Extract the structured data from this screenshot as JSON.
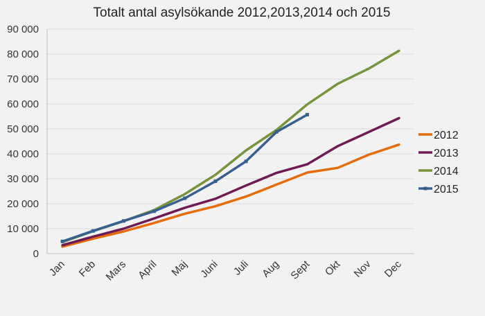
{
  "chart_data": {
    "type": "line",
    "title": "Totalt antal asylsökande 2012,2013,2014 och 2015",
    "xlabel": "",
    "ylabel": "",
    "categories": [
      "Jan",
      "Feb",
      "Mars",
      "April",
      "Maj",
      "Juni",
      "Juli",
      "Aug",
      "Sept",
      "Okt",
      "Nov",
      "Dec"
    ],
    "ylim": [
      0,
      90000
    ],
    "yticks": [
      0,
      10000,
      20000,
      30000,
      40000,
      50000,
      60000,
      70000,
      80000,
      90000
    ],
    "ytick_labels": [
      "0",
      "10 000",
      "20 000",
      "30 000",
      "40 000",
      "50 000",
      "60 000",
      "70 000",
      "80 000",
      "90 000"
    ],
    "grid": true,
    "legend_position": "right",
    "series": [
      {
        "name": "2012",
        "color": "#e46c0a",
        "markers": false,
        "values": [
          2800,
          6000,
          8900,
          12300,
          16000,
          19000,
          22900,
          27700,
          32500,
          34400,
          39600,
          43700
        ]
      },
      {
        "name": "2013",
        "color": "#6f1a55",
        "markers": false,
        "values": [
          3400,
          6800,
          10000,
          14100,
          18400,
          22000,
          27300,
          32400,
          35800,
          43100,
          48700,
          54300
        ]
      },
      {
        "name": "2014",
        "color": "#77933c",
        "markers": false,
        "values": [
          4600,
          9000,
          13000,
          17500,
          23900,
          31600,
          41400,
          49600,
          59800,
          68100,
          74100,
          81300
        ]
      },
      {
        "name": "2015",
        "color": "#376092",
        "markers": true,
        "values": [
          4900,
          9100,
          13100,
          17000,
          22200,
          29000,
          37000,
          48800,
          55700,
          null,
          null,
          null
        ]
      }
    ]
  }
}
